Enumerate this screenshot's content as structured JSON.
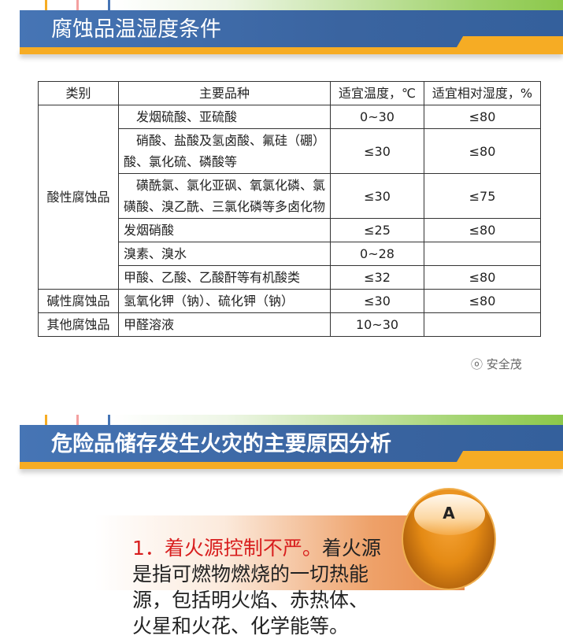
{
  "section1": {
    "title": "腐蚀品温湿度条件"
  },
  "table": {
    "headers": [
      "类别",
      "主要品种",
      "适宜温度，℃",
      "适宜相对湿度，%"
    ],
    "groups": [
      {
        "category": "酸性腐蚀品",
        "rows": [
          {
            "variety": "　发烟硫酸、亚硫酸",
            "temp": "0~30",
            "humidity": "≤80"
          },
          {
            "variety": "　硝酸、盐酸及氢卤酸、氟硅（硼）酸、氯化硫、磷酸等",
            "temp": "≤30",
            "humidity": "≤80"
          },
          {
            "variety": "　磺酰氯、氯化亚砜、氧氯化磷、氯磺酸、溴乙酰、三氯化磷等多卤化物",
            "temp": "≤30",
            "humidity": "≤75"
          },
          {
            "variety": "发烟硝酸",
            "temp": "≤25",
            "humidity": "≤80"
          },
          {
            "variety": "溴素、溴水",
            "temp": "0~28",
            "humidity": ""
          },
          {
            "variety": "甲酸、乙酸、乙酸酐等有机酸类",
            "temp": "≤32",
            "humidity": "≤80"
          }
        ]
      },
      {
        "category": "碱性腐蚀品",
        "rows": [
          {
            "variety": "氢氧化钾（钠）、硫化钾（钠）",
            "temp": "≤30",
            "humidity": "≤80"
          }
        ]
      },
      {
        "category": "其他腐蚀品",
        "rows": [
          {
            "variety": "甲醛溶液",
            "temp": "10~30",
            "humidity": ""
          }
        ]
      }
    ]
  },
  "watermark": "安全茂",
  "section2": {
    "title": "危险品储存发生火灾的主要原因分析"
  },
  "point": {
    "badge": "A",
    "heading": "1．着火源控制不严。",
    "text": "着火源是指可燃物燃烧的一切热能源，包括明火焰、赤热体、火星和火花、化学能等。"
  },
  "colors": {
    "banner_blue": "#3a64a0",
    "banner_orange": "#f6ac24",
    "accent_red": "#d81e1e",
    "badge_orange": "#e48a14"
  }
}
